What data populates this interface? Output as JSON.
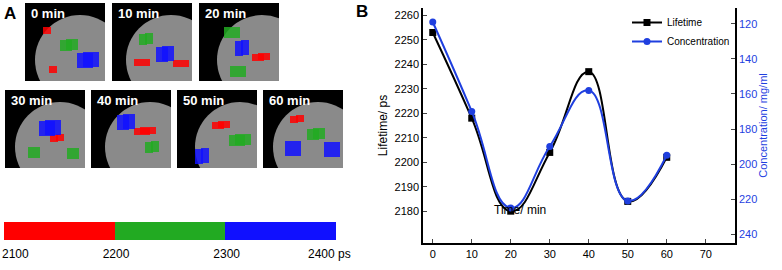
{
  "panels": [
    "A",
    "B"
  ],
  "images": {
    "labels": [
      "0 min",
      "10 min",
      "20 min",
      "30 min",
      "40 min",
      "50 min",
      "60 min"
    ],
    "colorbar": {
      "colors": [
        "#ff0000",
        "#22aa22",
        "#1010ff"
      ],
      "ticks": [
        2100,
        2200,
        2300,
        {
          "value": 2400,
          "label": "2400 ps"
        }
      ]
    }
  },
  "chart_data": {
    "type": "line",
    "xlabel": "Time/ min",
    "ylabel": "Lifetime/ ps",
    "y2label": "Concentration/ mg/ml",
    "x": [
      0,
      10,
      20,
      30,
      40,
      50,
      60
    ],
    "line_style": "smooth",
    "series": [
      {
        "name": "Lifetime",
        "color": "#000000",
        "marker": "square",
        "values": [
          2253,
          2218,
          2180,
          2204,
          2237,
          2184,
          2202
        ]
      },
      {
        "name": "Concentration",
        "color": "#1f3fdf",
        "marker": "circle",
        "axis": "y2",
        "values": [
          119,
          170,
          225,
          190,
          158,
          221,
          195
        ]
      }
    ],
    "xlim": [
      -2.5,
      77.5
    ],
    "xticks": [
      0,
      10,
      20,
      30,
      40,
      50,
      60,
      70
    ],
    "ylim": [
      2167,
      2263
    ],
    "yticks": [
      2180,
      2190,
      2200,
      2210,
      2220,
      2230,
      2240,
      2250,
      2260
    ],
    "y2lim": [
      245,
      111
    ],
    "y2ticks": [
      120,
      140,
      160,
      180,
      200,
      220,
      240
    ],
    "legend": "top right",
    "grid": false
  }
}
